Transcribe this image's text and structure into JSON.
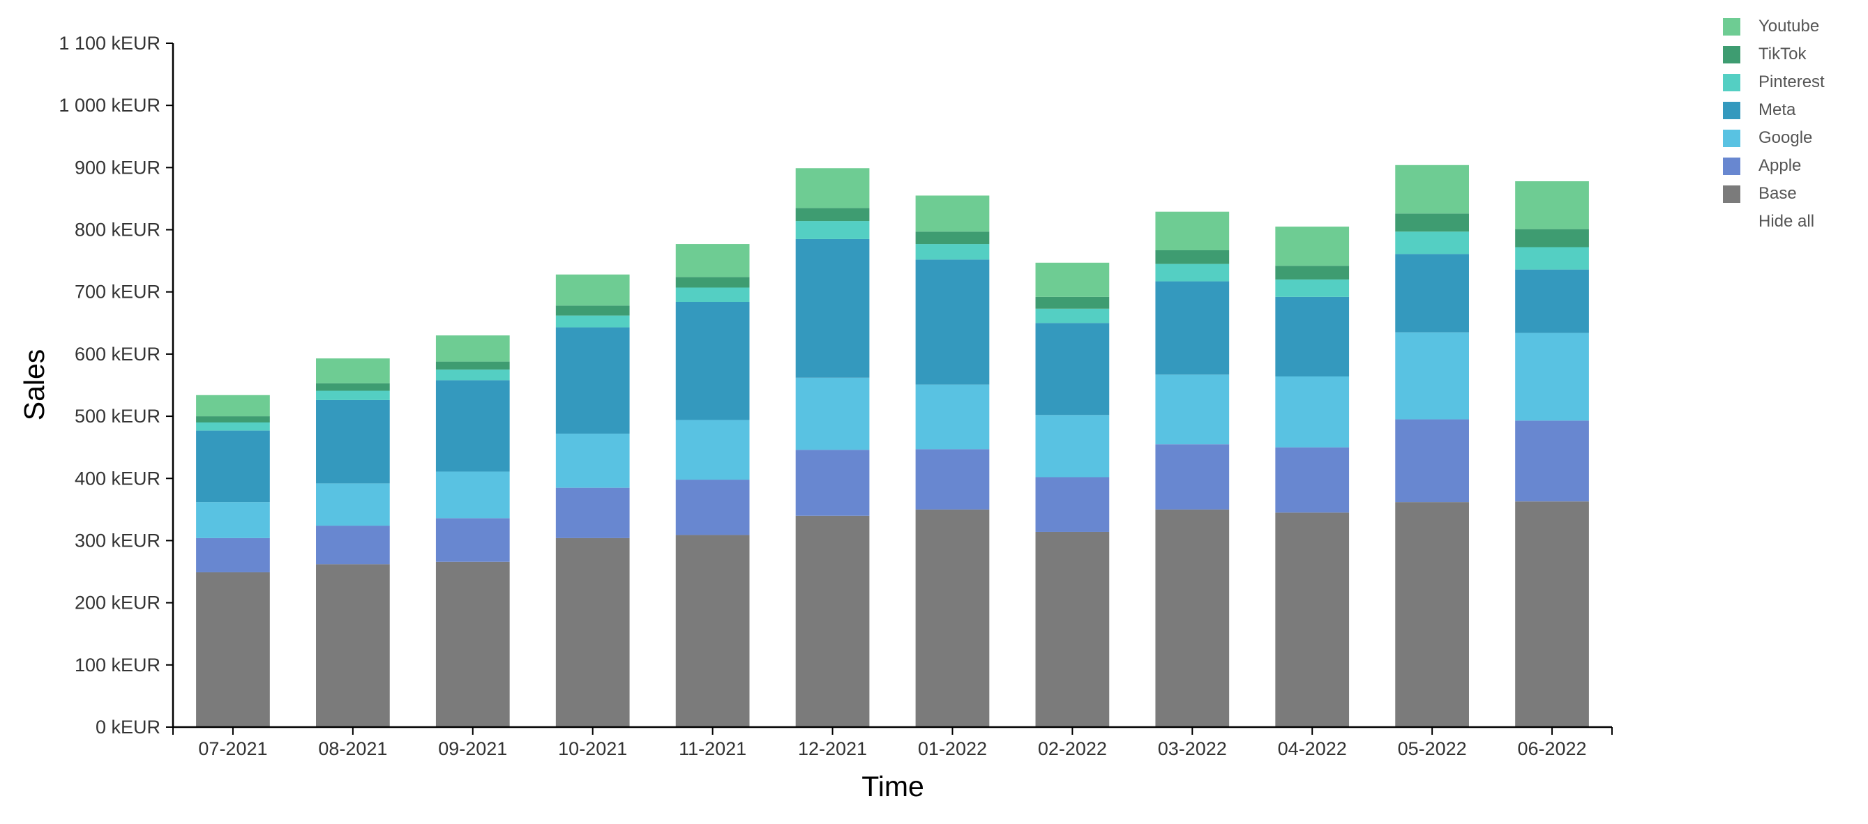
{
  "chart_data": {
    "type": "bar",
    "stacked": true,
    "xlabel": "Time",
    "ylabel": "Sales",
    "ylim": [
      0,
      1100
    ],
    "yticks": [
      0,
      100,
      200,
      300,
      400,
      500,
      600,
      700,
      800,
      900,
      1000,
      1100
    ],
    "ytick_labels": [
      "0 kEUR",
      "100 kEUR",
      "200 kEUR",
      "300 kEUR",
      "400 kEUR",
      "500 kEUR",
      "600 kEUR",
      "700 kEUR",
      "800 kEUR",
      "900 kEUR",
      "1 000 kEUR",
      "1 100 kEUR"
    ],
    "categories": [
      "07-2021",
      "08-2021",
      "09-2021",
      "10-2021",
      "11-2021",
      "12-2021",
      "01-2022",
      "02-2022",
      "03-2022",
      "04-2022",
      "05-2022",
      "06-2022"
    ],
    "series": [
      {
        "name": "Base",
        "color": "#7b7b7b",
        "values": [
          249,
          262,
          266,
          304,
          309,
          340,
          350,
          314,
          350,
          345,
          362,
          363
        ]
      },
      {
        "name": "Apple",
        "color": "#6887d0",
        "values": [
          55,
          62,
          70,
          81,
          89,
          106,
          97,
          88,
          105,
          105,
          133,
          130
        ]
      },
      {
        "name": "Google",
        "color": "#59c2e2",
        "values": [
          58,
          68,
          75,
          87,
          96,
          116,
          104,
          100,
          112,
          114,
          140,
          141
        ]
      },
      {
        "name": "Meta",
        "color": "#3499be",
        "values": [
          115,
          134,
          147,
          171,
          190,
          223,
          201,
          148,
          150,
          128,
          126,
          102
        ]
      },
      {
        "name": "Pinterest",
        "color": "#54cfc3",
        "values": [
          13,
          15,
          17,
          19,
          23,
          29,
          25,
          23,
          28,
          28,
          36,
          36
        ]
      },
      {
        "name": "TikTok",
        "color": "#3e9c71",
        "values": [
          10,
          12,
          13,
          16,
          17,
          21,
          20,
          19,
          22,
          22,
          29,
          29
        ]
      },
      {
        "name": "Youtube",
        "color": "#6ecc93",
        "values": [
          34,
          40,
          42,
          50,
          53,
          64,
          58,
          55,
          62,
          63,
          78,
          77
        ]
      }
    ],
    "legend": {
      "position": "top-right",
      "order": [
        "Youtube",
        "TikTok",
        "Pinterest",
        "Meta",
        "Google",
        "Apple",
        "Base"
      ],
      "hide_all_label": "Hide all"
    },
    "grid": false
  }
}
